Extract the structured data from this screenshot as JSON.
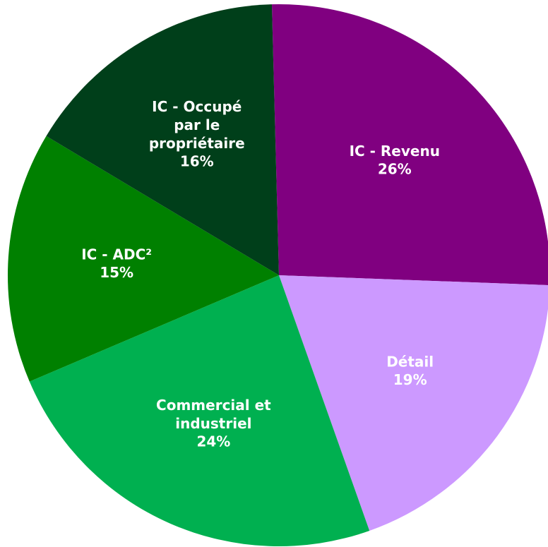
{
  "chart_data": {
    "type": "pie",
    "categories": [
      "IC - Revenu",
      "Détail",
      "Commercial et industriel",
      "IC - ADC²",
      "IC - Occupé par le propriétaire"
    ],
    "values": [
      26,
      19,
      24,
      15,
      16
    ],
    "value_labels": [
      "26%",
      "19%",
      "24%",
      "15%",
      "16%"
    ],
    "colors": [
      "#800080",
      "#cc99ff",
      "#00b050",
      "#008000",
      "#003f1a"
    ]
  }
}
